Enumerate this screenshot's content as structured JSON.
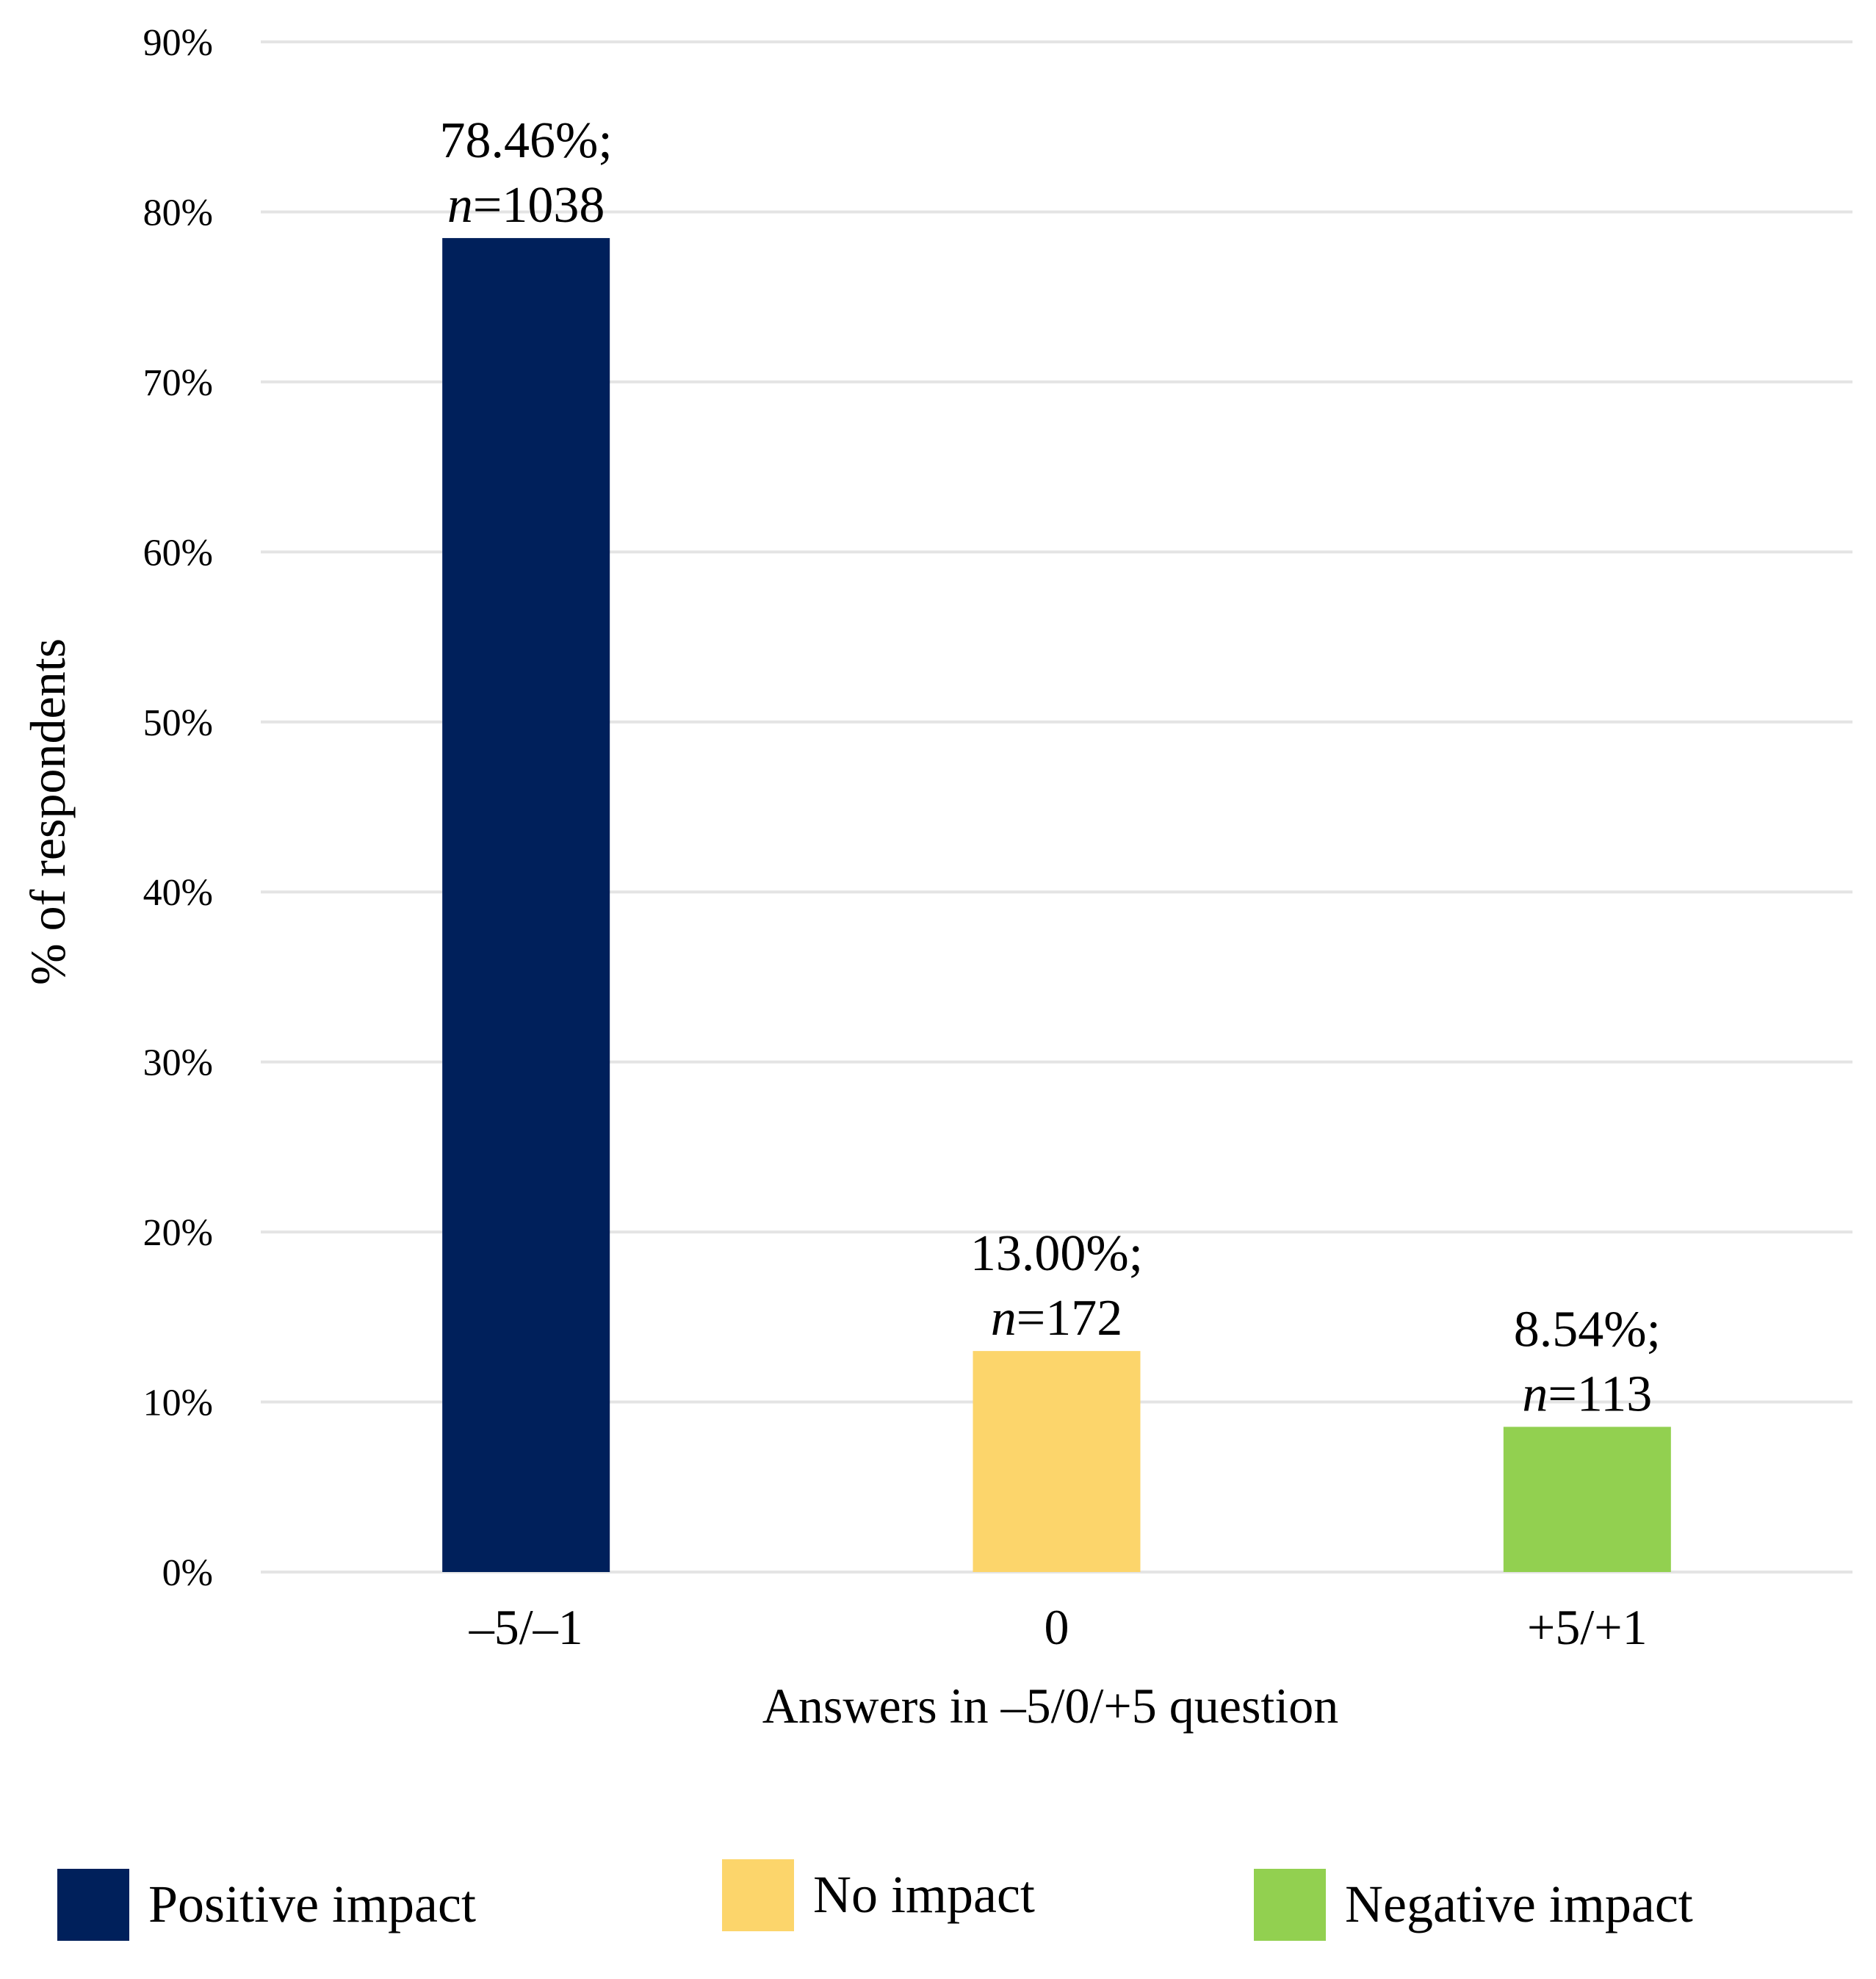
{
  "chart_data": {
    "type": "bar",
    "categories": [
      "–5/–1",
      "0",
      "+5/+1"
    ],
    "values": [
      78.46,
      13.0,
      8.54
    ],
    "n": [
      1038,
      172,
      113
    ],
    "bar_labels": [
      {
        "pct": "78.46%;",
        "n_prefix": "n",
        "n_value": "=1038"
      },
      {
        "pct": "13.00%;",
        "n_prefix": "n",
        "n_value": "=172"
      },
      {
        "pct": "8.54%;",
        "n_prefix": "n",
        "n_value": "=113"
      }
    ],
    "colors": [
      "#00205b",
      "#fcd56b",
      "#92d050"
    ],
    "xlabel": "Answers in –5/0/+5 question",
    "ylabel": "% of respondents",
    "ylim": [
      0,
      90
    ],
    "yticks": [
      0,
      10,
      20,
      30,
      40,
      50,
      60,
      70,
      80,
      90
    ],
    "ytick_labels": [
      "0%",
      "10%",
      "20%",
      "30%",
      "40%",
      "50%",
      "60%",
      "70%",
      "80%",
      "90%"
    ],
    "grid": true,
    "legend": {
      "placement": "bottom",
      "entries": [
        {
          "label": "Positive impact",
          "color": "#00205b"
        },
        {
          "label": "No impact",
          "color": "#fcd56b"
        },
        {
          "label": "Negative impact",
          "color": "#92d050"
        }
      ]
    }
  }
}
